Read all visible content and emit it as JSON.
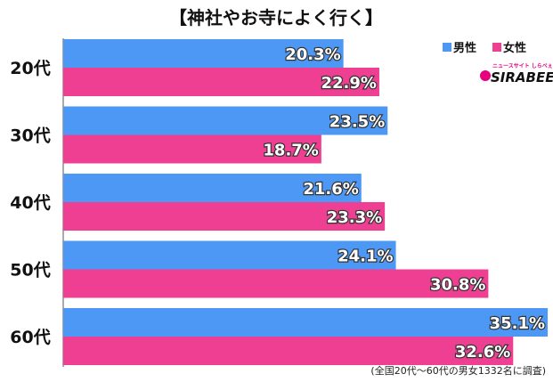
{
  "chart_data": {
    "type": "bar",
    "orientation": "horizontal",
    "title": "【神社やお寺によく行く】",
    "categories": [
      "20代",
      "30代",
      "40代",
      "50代",
      "60代"
    ],
    "series": [
      {
        "name": "男性",
        "color": "#4d98f5",
        "values": [
          20.3,
          23.5,
          21.6,
          24.1,
          35.1
        ]
      },
      {
        "name": "女性",
        "color": "#ef3f93",
        "values": [
          22.9,
          18.7,
          23.3,
          30.8,
          32.6
        ]
      }
    ],
    "value_labels": {
      "male": [
        "20.3%",
        "23.5%",
        "21.6%",
        "24.1%",
        "35.1%"
      ],
      "female": [
        "22.9%",
        "18.7%",
        "23.3%",
        "30.8%",
        "32.6%"
      ]
    },
    "xlim": [
      0,
      38
    ],
    "grid": false,
    "legend_position": "top-right",
    "source_note": "(全国20代～60代の男女1332名に調査)"
  },
  "brand": {
    "logo_text": "SIRABEE",
    "logo_tagline": "ニュースサイト しらべぇ"
  }
}
